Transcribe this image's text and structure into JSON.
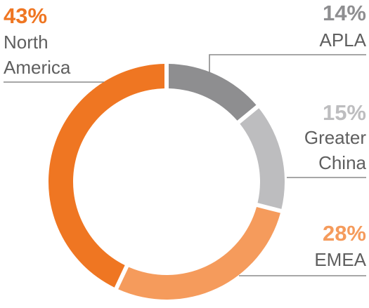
{
  "chart_data": {
    "type": "pie",
    "variant": "donut",
    "categories": [
      "APLA",
      "Greater China",
      "EMEA",
      "North America"
    ],
    "category_lines": [
      [
        "APLA"
      ],
      [
        "Greater",
        "China"
      ],
      [
        "EMEA"
      ],
      [
        "North",
        "America"
      ]
    ],
    "values": [
      14,
      15,
      28,
      43
    ],
    "value_labels": [
      "14%",
      "15%",
      "28%",
      "43%"
    ],
    "colors": [
      "#8e8e90",
      "#bdbdbf",
      "#f59b5c",
      "#ef7622"
    ],
    "label_colors": [
      "#8e8e90",
      "#bdbdbf",
      "#f59b5c",
      "#ef7622"
    ],
    "start": "top",
    "direction": "clockwise",
    "legend": "none"
  }
}
